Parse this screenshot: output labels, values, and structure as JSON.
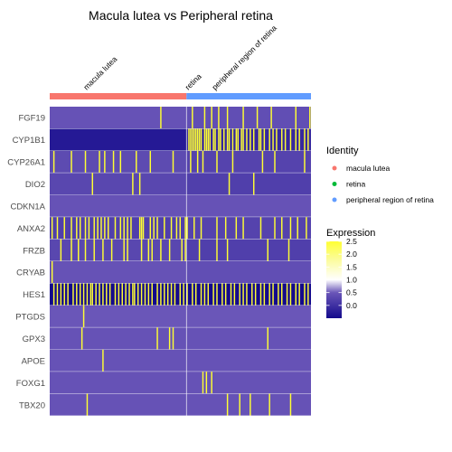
{
  "chart_data": {
    "type": "heatmap",
    "title": "Macula lutea vs Peripheral retina",
    "genes": [
      "FGF19",
      "CYP1B1",
      "CYP26A1",
      "DIO2",
      "CDKN1A",
      "ANXA2",
      "FRZB",
      "CRYAB",
      "HES1",
      "PTGDS",
      "GPX3",
      "APOE",
      "FOXG1",
      "TBX20"
    ],
    "groups": [
      {
        "name": "macula lutea",
        "color": "#F8766D",
        "cells": 78
      },
      {
        "name": "retina",
        "color": "#00BA38",
        "cells": 0
      },
      {
        "name": "peripheral region of retina",
        "color": "#619CFF",
        "cells": 71
      }
    ],
    "color_scale": {
      "min": -0.5,
      "max": 2.5,
      "stops": [
        {
          "value": -0.5,
          "color": "#140a8c"
        },
        {
          "value": 0.5,
          "color": "#6a56b8"
        },
        {
          "value": 1.0,
          "color": "#ffffff"
        },
        {
          "value": 1.8,
          "color": "#fbfc9a"
        },
        {
          "value": 2.5,
          "color": "#ffff33"
        }
      ]
    },
    "baseline_levels": [
      {
        "gene": "FGF19",
        "macula": 0.45,
        "periphery": 0.4
      },
      {
        "gene": "CYP1B1",
        "macula": -0.3,
        "periphery": -0.1
      },
      {
        "gene": "CYP26A1",
        "macula": 0.35,
        "periphery": 0.25
      },
      {
        "gene": "DIO2",
        "macula": 0.3,
        "periphery": 0.2
      },
      {
        "gene": "CDKN1A",
        "macula": 0.45,
        "periphery": 0.45
      },
      {
        "gene": "ANXA2",
        "macula": 0.2,
        "periphery": 0.25
      },
      {
        "gene": "FRZB",
        "macula": 0.3,
        "periphery": 0.2
      },
      {
        "gene": "CRYAB",
        "macula": 0.45,
        "periphery": 0.4
      },
      {
        "gene": "HES1",
        "macula": -0.5,
        "periphery": -0.5
      },
      {
        "gene": "PTGDS",
        "macula": 0.5,
        "periphery": 0.5
      },
      {
        "gene": "GPX3",
        "macula": 0.45,
        "periphery": 0.45
      },
      {
        "gene": "APOE",
        "macula": 0.45,
        "periphery": 0.45
      },
      {
        "gene": "FOXG1",
        "macula": 0.45,
        "periphery": 0.45
      },
      {
        "gene": "TBX20",
        "macula": 0.45,
        "periphery": 0.45
      }
    ],
    "high_cells": [
      {
        "gene": "FGF19",
        "cells": [
          63,
          81,
          88,
          92,
          96,
          101,
          110,
          118,
          126,
          140,
          148
        ]
      },
      {
        "gene": "CYP1B1",
        "cells": [
          79,
          80,
          81,
          82,
          83,
          84,
          85,
          86,
          88,
          89,
          90,
          91,
          93,
          94,
          96,
          97,
          99,
          101,
          102,
          104,
          106,
          107,
          109,
          110,
          112,
          114,
          116,
          119,
          120,
          122,
          125,
          127,
          129,
          132,
          134,
          137,
          140,
          142,
          145,
          147
        ]
      },
      {
        "gene": "CYP26A1",
        "cells": [
          2,
          12,
          20,
          28,
          31,
          36,
          40,
          49,
          57,
          70,
          80,
          84,
          87,
          95,
          104,
          121,
          128,
          145
        ]
      },
      {
        "gene": "DIO2",
        "cells": [
          24,
          47,
          51,
          102,
          116
        ]
      },
      {
        "gene": "CDKN1A",
        "cells": []
      },
      {
        "gene": "ANXA2",
        "cells": [
          1,
          4,
          8,
          12,
          15,
          17,
          20,
          22,
          25,
          27,
          29,
          31,
          33,
          37,
          40,
          42,
          44,
          46,
          51,
          52,
          53,
          57,
          59,
          61,
          65,
          69,
          72,
          74,
          77,
          78,
          82,
          86,
          95,
          100,
          106,
          110,
          120,
          128,
          132,
          137,
          141,
          146
        ]
      },
      {
        "gene": "FRZB",
        "cells": [
          6,
          12,
          16,
          20,
          25,
          30,
          35,
          42,
          44,
          52,
          56,
          58,
          63,
          68,
          75,
          77,
          85,
          95,
          101,
          124,
          136
        ]
      },
      {
        "gene": "CRYAB",
        "cells": [
          1
        ]
      },
      {
        "gene": "HES1",
        "cells": [
          2,
          4,
          6,
          8,
          10,
          13,
          15,
          17,
          19,
          21,
          23,
          24,
          26,
          28,
          30,
          32,
          34,
          37,
          39,
          41,
          43,
          45,
          47,
          48,
          50,
          52,
          54,
          56,
          58,
          61,
          63,
          65,
          67,
          69,
          71,
          74,
          76,
          78,
          81,
          83,
          86,
          88,
          90,
          93,
          95,
          98,
          100,
          103,
          105,
          108,
          110,
          112,
          115,
          117,
          120,
          122,
          125,
          127,
          130,
          132,
          135,
          137,
          140,
          142,
          145,
          147
        ]
      },
      {
        "gene": "PTGDS",
        "cells": [
          19
        ]
      },
      {
        "gene": "GPX3",
        "cells": [
          18,
          61,
          68,
          70,
          124
        ]
      },
      {
        "gene": "APOE",
        "cells": [
          30
        ]
      },
      {
        "gene": "FOXG1",
        "cells": [
          87,
          89,
          92
        ]
      },
      {
        "gene": "TBX20",
        "cells": [
          21,
          101,
          108,
          114,
          125,
          137
        ]
      }
    ],
    "legend": {
      "identity_title": "Identity",
      "expression_title": "Expression",
      "expression_ticks": [
        "2.5",
        "2.0",
        "1.5",
        "1.0",
        "0.5",
        "0.0"
      ],
      "expression_tick_values": [
        2.5,
        2.0,
        1.5,
        1.0,
        0.5,
        0.0
      ],
      "placement": "right"
    }
  }
}
